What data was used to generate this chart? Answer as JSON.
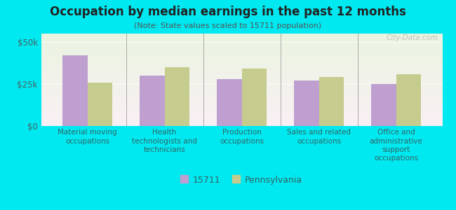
{
  "title": "Occupation by median earnings in the past 12 months",
  "subtitle": "(Note: State values scaled to 15711 population)",
  "categories": [
    "Material moving\noccupations",
    "Health\ntechnologists and\ntechnicians",
    "Production\noccupations",
    "Sales and related\noccupations",
    "Office and\nadministrative\nsupport\noccupations"
  ],
  "values_15711": [
    42000,
    30000,
    28000,
    27000,
    25000
  ],
  "values_pa": [
    26000,
    35000,
    34000,
    29000,
    31000
  ],
  "color_15711": "#bf9fd0",
  "color_pa": "#c5cc8e",
  "background_outer": "#00e8f0",
  "ylim": [
    0,
    55000
  ],
  "yticks": [
    0,
    25000,
    50000
  ],
  "ytick_labels": [
    "$0",
    "$25k",
    "$50k"
  ],
  "legend_labels": [
    "15711",
    "Pennsylvania"
  ],
  "watermark": "City-Data.com",
  "bar_width": 0.32
}
